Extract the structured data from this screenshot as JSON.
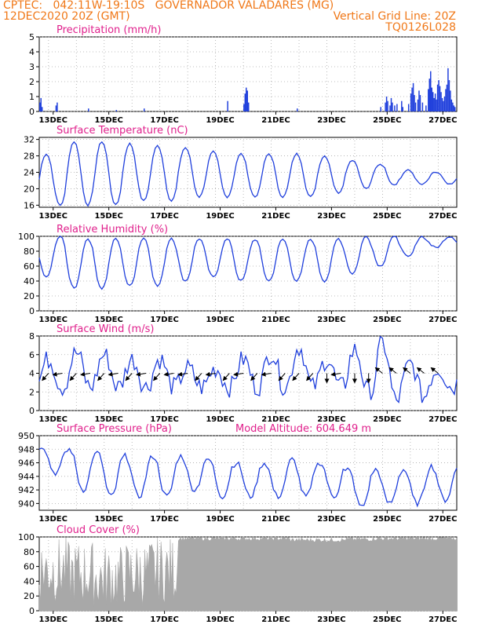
{
  "header": {
    "line1_left": "CPTEC:   042:11W-19:10S   GOVERNADOR VALADARES (MG)",
    "line2_left": "12DEC2020 20Z (GMT)",
    "line2_right": "Vertical Grid Line: 20Z",
    "line3_right": "TQ0126L028"
  },
  "colors": {
    "header": "#f07818",
    "title": "#e0208c",
    "series": "#1f3fdc",
    "cloud": "#a8a8a8",
    "grid": "#aaaaaa"
  },
  "x_ticks": [
    "13DEC",
    "15DEC",
    "17DEC",
    "19DEC",
    "21DEC",
    "23DEC",
    "25DEC",
    "27DEC"
  ],
  "chart_data": [
    {
      "type": "bar",
      "title": "Precipitation (mm/h)",
      "x": "hours since 12DEC2020 12Z",
      "ylim": [
        0,
        5
      ],
      "yticks": [
        0,
        1,
        2,
        3,
        4,
        5
      ],
      "xlim": [
        0,
        360
      ],
      "grid": true,
      "values_by_hour": [
        [
          0,
          0.6
        ],
        [
          1,
          0.9
        ],
        [
          2,
          0.3
        ],
        [
          14,
          0.4
        ],
        [
          15,
          0.6
        ],
        [
          42,
          0.2
        ],
        [
          66,
          0.1
        ],
        [
          90,
          0.2
        ],
        [
          162,
          0.7
        ],
        [
          176,
          0.5
        ],
        [
          177,
          1.2
        ],
        [
          178,
          1.6
        ],
        [
          179,
          1.4
        ],
        [
          180,
          0.6
        ],
        [
          222,
          0.2
        ],
        [
          294,
          0.3
        ],
        [
          298,
          0.6
        ],
        [
          299,
          1.0
        ],
        [
          300,
          0.7
        ],
        [
          302,
          0.4
        ],
        [
          303,
          0.9
        ],
        [
          304,
          0.6
        ],
        [
          306,
          0.4
        ],
        [
          308,
          0.5
        ],
        [
          312,
          0.7
        ],
        [
          313,
          0.3
        ],
        [
          318,
          0.5
        ],
        [
          320,
          1.2
        ],
        [
          321,
          1.6
        ],
        [
          322,
          1.9
        ],
        [
          323,
          1.1
        ],
        [
          324,
          0.6
        ],
        [
          326,
          0.8
        ],
        [
          327,
          1.4
        ],
        [
          328,
          1.1
        ],
        [
          330,
          0.6
        ],
        [
          333,
          0.4
        ],
        [
          335,
          1.5
        ],
        [
          336,
          2.2
        ],
        [
          337,
          2.7
        ],
        [
          338,
          1.6
        ],
        [
          339,
          1.3
        ],
        [
          340,
          0.9
        ],
        [
          341,
          1.2
        ],
        [
          342,
          0.8
        ],
        [
          343,
          1.8
        ],
        [
          344,
          2.1
        ],
        [
          345,
          1.7
        ],
        [
          346,
          1.3
        ],
        [
          347,
          0.9
        ],
        [
          348,
          0.7
        ],
        [
          349,
          1.0
        ],
        [
          350,
          1.5
        ],
        [
          351,
          1.8
        ],
        [
          352,
          2.9
        ],
        [
          353,
          2.1
        ],
        [
          354,
          1.4
        ],
        [
          355,
          0.8
        ],
        [
          356,
          0.6
        ],
        [
          357,
          0.4
        ],
        [
          358,
          0.3
        ]
      ]
    },
    {
      "type": "line",
      "title": "Surface Temperature (nC)",
      "ylim": [
        15.5,
        32.5
      ],
      "yticks": [
        16,
        20,
        24,
        28,
        32
      ],
      "grid": true,
      "daily_min": [
        16,
        16,
        16,
        17,
        17,
        18,
        18,
        18,
        18,
        18,
        19,
        20,
        21,
        21,
        21
      ],
      "daily_max": [
        28.5,
        31.5,
        31.5,
        31,
        30.5,
        30,
        29,
        28.5,
        28.5,
        28.5,
        28,
        27,
        26,
        24.5,
        24
      ]
    },
    {
      "type": "line",
      "title": "Relative Humidity (%)",
      "ylim": [
        0,
        100
      ],
      "yticks": [
        0,
        20,
        40,
        60,
        80,
        100
      ],
      "grid": true,
      "daily_max": [
        100,
        97,
        97,
        98,
        98,
        97,
        96,
        96,
        96,
        96,
        97,
        100,
        100,
        100,
        100
      ],
      "daily_min": [
        45,
        30,
        30,
        33,
        33,
        40,
        45,
        40,
        40,
        40,
        40,
        50,
        60,
        72,
        85
      ]
    },
    {
      "type": "line",
      "title": "Surface Wind (m/s)",
      "ylim": [
        0,
        8
      ],
      "yticks": [
        0,
        2,
        4,
        6,
        8
      ],
      "grid": true,
      "speed_pattern_min": [
        2.5,
        2.5,
        2.5,
        2.5,
        2.5,
        2.5,
        2.5,
        2.5,
        2.5,
        2.5,
        2.5,
        2.0,
        1.0,
        1.5,
        2.5
      ],
      "speed_pattern_max": [
        5.5,
        6.2,
        6.0,
        5.5,
        5.5,
        4.5,
        4.5,
        5.5,
        6.2,
        6.8,
        5.5,
        6.5,
        7.2,
        5.0,
        4.5
      ]
    },
    {
      "type": "line",
      "title": "Surface Pressure (hPa)",
      "annotation": "Model Altitude: 604.649 m",
      "ylim": [
        939,
        950
      ],
      "yticks": [
        940,
        942,
        944,
        946,
        948,
        950
      ],
      "grid": true,
      "daily_max": [
        948.5,
        948.0,
        947.5,
        947.0,
        947.0,
        947.0,
        946.5,
        946.0,
        946.0,
        946.5,
        946.0,
        945.0,
        945.0,
        945.0,
        945.5
      ],
      "daily_min": [
        944.5,
        942.0,
        941.0,
        941.0,
        941.0,
        942.0,
        941.0,
        941.0,
        941.0,
        941.0,
        941.0,
        939.5,
        940.0,
        940.0,
        940.5
      ]
    },
    {
      "type": "area",
      "title": "Cloud Cover (%)",
      "ylim": [
        0,
        100
      ],
      "yticks": [
        0,
        20,
        40,
        60,
        80,
        100
      ],
      "grid": true,
      "daily_typical": [
        55,
        50,
        45,
        50,
        55,
        98,
        98,
        98,
        98,
        96,
        96,
        97,
        98,
        98,
        98
      ]
    }
  ]
}
